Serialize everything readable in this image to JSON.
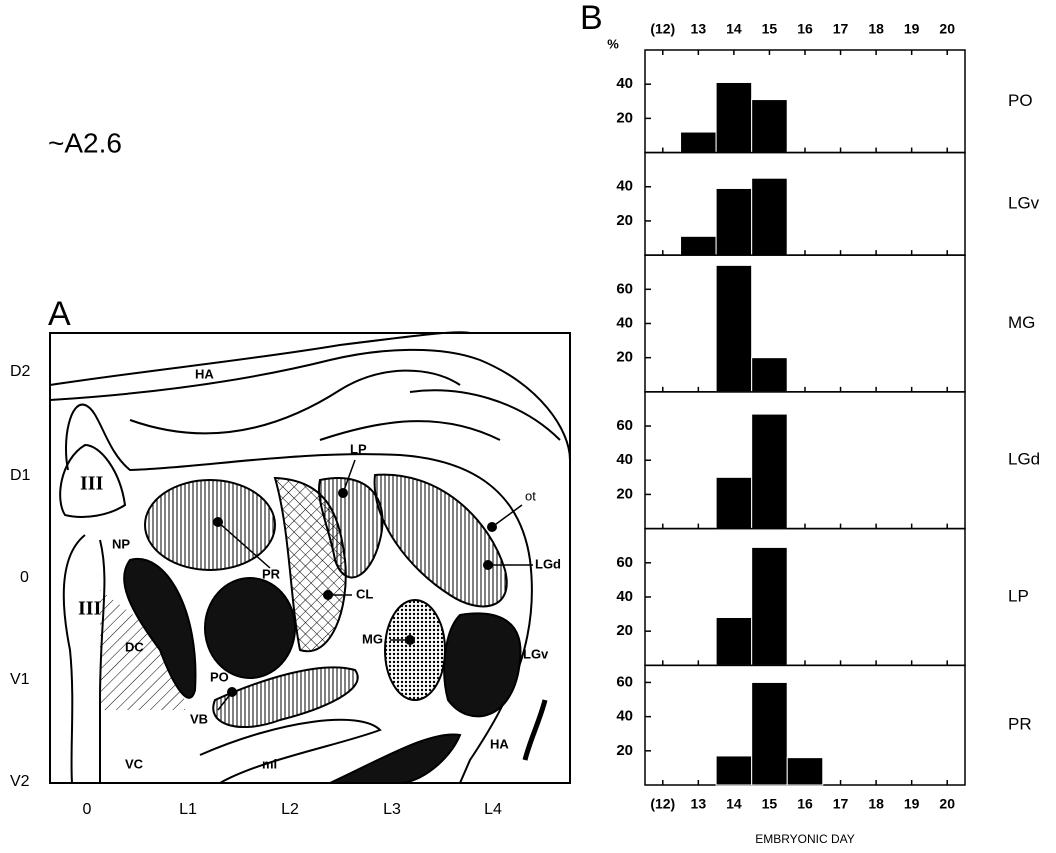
{
  "panel_a": {
    "section": "~A2.6",
    "label": "A",
    "y_axis": [
      "D2",
      "D1",
      "0",
      "V1",
      "V2"
    ],
    "x_axis": [
      "0",
      "L1",
      "L2",
      "L3",
      "L4"
    ],
    "regions": [
      "HA",
      "III",
      "III",
      "NP",
      "DC",
      "VC",
      "PR",
      "PO",
      "VB",
      "ml",
      "LP",
      "CL",
      "MG",
      "LGd",
      "LGv",
      "ot",
      "HA"
    ]
  },
  "panel_b": {
    "label": "B"
  },
  "chart_data": [
    {
      "type": "bar",
      "title": "PO",
      "y_label": "%",
      "x": [
        13,
        14,
        15
      ],
      "values": [
        12,
        41,
        31
      ],
      "ylim": [
        0,
        60
      ],
      "yticks": [
        20,
        40
      ],
      "xlim": [
        11.5,
        20.5
      ],
      "xticks": [
        {
          "value": 12,
          "label": "(12)"
        },
        13,
        14,
        15,
        16,
        17,
        18,
        19,
        20
      ],
      "color": "#000000"
    },
    {
      "type": "bar",
      "title": "LGv",
      "x": [
        13,
        14,
        15
      ],
      "values": [
        11,
        39,
        45
      ],
      "ylim": [
        0,
        60
      ],
      "yticks": [
        20,
        40
      ],
      "xlim": [
        11.5,
        20.5
      ],
      "xticks": [
        {
          "value": 12,
          "label": "(12)"
        },
        13,
        14,
        15,
        16,
        17,
        18,
        19,
        20
      ],
      "color": "#000000"
    },
    {
      "type": "bar",
      "title": "MG",
      "x": [
        14,
        15
      ],
      "values": [
        74,
        20
      ],
      "ylim": [
        0,
        80
      ],
      "yticks": [
        20,
        40,
        60
      ],
      "xlim": [
        11.5,
        20.5
      ],
      "xticks": [
        {
          "value": 12,
          "label": "(12)"
        },
        13,
        14,
        15,
        16,
        17,
        18,
        19,
        20
      ],
      "color": "#000000"
    },
    {
      "type": "bar",
      "title": "LGd",
      "x": [
        14,
        15
      ],
      "values": [
        30,
        67
      ],
      "ylim": [
        0,
        80
      ],
      "yticks": [
        20,
        40,
        60
      ],
      "xlim": [
        11.5,
        20.5
      ],
      "xticks": [
        {
          "value": 12,
          "label": "(12)"
        },
        13,
        14,
        15,
        16,
        17,
        18,
        19,
        20
      ],
      "color": "#000000"
    },
    {
      "type": "bar",
      "title": "LP",
      "x": [
        14,
        15
      ],
      "values": [
        28,
        69
      ],
      "ylim": [
        0,
        80
      ],
      "yticks": [
        20,
        40,
        60
      ],
      "xlim": [
        11.5,
        20.5
      ],
      "xticks": [
        {
          "value": 12,
          "label": "(12)"
        },
        13,
        14,
        15,
        16,
        17,
        18,
        19,
        20
      ],
      "color": "#000000"
    },
    {
      "type": "bar",
      "title": "PR",
      "x_label": "EMBRYONIC DAY",
      "x": [
        14,
        15,
        16
      ],
      "values": [
        17,
        60,
        16
      ],
      "ylim": [
        0,
        70
      ],
      "yticks": [
        20,
        40,
        60
      ],
      "xlim": [
        11.5,
        20.5
      ],
      "xticks": [
        {
          "value": 12,
          "label": "(12)"
        },
        13,
        14,
        15,
        16,
        17,
        18,
        19,
        20
      ],
      "color": "#000000"
    }
  ]
}
